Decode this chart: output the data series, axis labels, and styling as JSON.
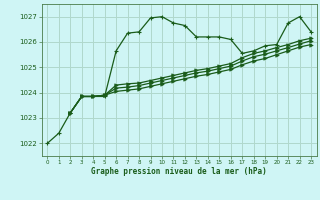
{
  "title": "Graphe pression niveau de la mer (hPa)",
  "bg_color": "#cff5f5",
  "grid_color": "#b0d8cc",
  "line_color": "#1a5c1a",
  "xlim": [
    -0.5,
    23.5
  ],
  "ylim": [
    1021.5,
    1027.5
  ],
  "yticks": [
    1022,
    1023,
    1024,
    1025,
    1026,
    1027
  ],
  "xtick_labels": [
    "0",
    "1",
    "2",
    "3",
    "4",
    "5",
    "6",
    "7",
    "8",
    "9",
    "10",
    "11",
    "12",
    "13",
    "14",
    "15",
    "16",
    "17",
    "18",
    "19",
    "20",
    "21",
    "22",
    "23"
  ],
  "series1_x": [
    0,
    1,
    2,
    3,
    4,
    5,
    6,
    7,
    8,
    9,
    10,
    11,
    12,
    13,
    14,
    15,
    16,
    17,
    18,
    19,
    20,
    21,
    22,
    23
  ],
  "series1_y": [
    1022.0,
    1022.4,
    1023.2,
    1023.85,
    1023.85,
    1023.85,
    1025.65,
    1026.35,
    1026.4,
    1026.95,
    1027.0,
    1026.75,
    1026.65,
    1026.2,
    1026.2,
    1026.2,
    1026.1,
    1025.55,
    1025.65,
    1025.85,
    1025.9,
    1026.75,
    1027.0,
    1026.4
  ],
  "series2_x": [
    2,
    3,
    4,
    5,
    6,
    7,
    8,
    9,
    10,
    11,
    12,
    13,
    14,
    15,
    16,
    17,
    18,
    19,
    20,
    21,
    22,
    23
  ],
  "series2_y": [
    1023.2,
    1023.85,
    1023.85,
    1023.9,
    1024.05,
    1024.1,
    1024.15,
    1024.25,
    1024.35,
    1024.45,
    1024.55,
    1024.65,
    1024.72,
    1024.82,
    1024.92,
    1025.1,
    1025.25,
    1025.35,
    1025.5,
    1025.65,
    1025.8,
    1025.9
  ],
  "series3_x": [
    2,
    3,
    4,
    5,
    6,
    7,
    8,
    9,
    10,
    11,
    12,
    13,
    14,
    15,
    16,
    17,
    18,
    19,
    20,
    21,
    22,
    23
  ],
  "series3_y": [
    1023.2,
    1023.85,
    1023.85,
    1023.9,
    1024.18,
    1024.22,
    1024.28,
    1024.38,
    1024.48,
    1024.58,
    1024.68,
    1024.78,
    1024.85,
    1024.95,
    1025.05,
    1025.25,
    1025.42,
    1025.52,
    1025.65,
    1025.78,
    1025.92,
    1026.05
  ],
  "series4_x": [
    2,
    3,
    4,
    5,
    6,
    7,
    8,
    9,
    10,
    11,
    12,
    13,
    14,
    15,
    16,
    17,
    18,
    19,
    20,
    21,
    22,
    23
  ],
  "series4_y": [
    1023.2,
    1023.85,
    1023.85,
    1023.9,
    1024.3,
    1024.35,
    1024.38,
    1024.48,
    1024.58,
    1024.68,
    1024.78,
    1024.88,
    1024.95,
    1025.05,
    1025.15,
    1025.38,
    1025.55,
    1025.65,
    1025.78,
    1025.9,
    1026.05,
    1026.15
  ]
}
